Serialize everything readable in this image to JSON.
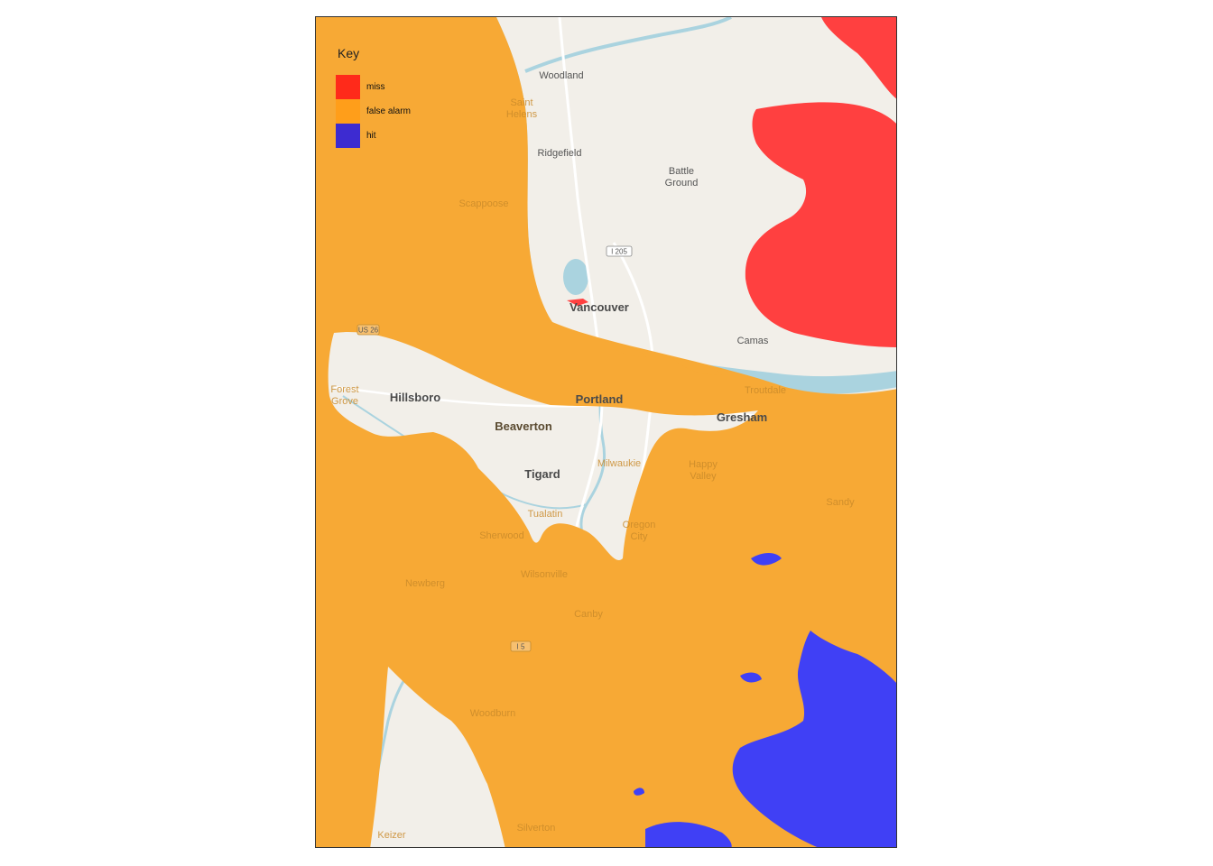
{
  "legend": {
    "title": "Key",
    "items": [
      {
        "label": "miss",
        "color": "#ff2a1a"
      },
      {
        "label": "false alarm",
        "color": "#ff9e1a"
      },
      {
        "label": "hit",
        "color": "#3d2bd1"
      }
    ]
  },
  "colors": {
    "land": "#f2efe9",
    "water": "#aad3df",
    "miss_overlay": "#ff4040",
    "false_alarm_overlay": "#f7a935",
    "hit_overlay": "#4040f5",
    "frame": "#333333"
  },
  "places": {
    "woodland": "Woodland",
    "saint_helens_1": "Saint",
    "saint_helens_2": "Helens",
    "ridgefield": "Ridgefield",
    "battle_ground_1": "Battle",
    "battle_ground_2": "Ground",
    "scappoose": "Scappoose",
    "vancouver": "Vancouver",
    "camas": "Camas",
    "forest_grove_1": "Forest",
    "forest_grove_2": "Grove",
    "hillsboro": "Hillsboro",
    "portland": "Portland",
    "troutdale": "Troutdale",
    "gresham": "Gresham",
    "beaverton": "Beaverton",
    "tigard": "Tigard",
    "milwaukie": "Milwaukie",
    "happy_valley_1": "Happy",
    "happy_valley_2": "Valley",
    "sandy": "Sandy",
    "tualatin": "Tualatin",
    "oregon_city_1": "Oregon",
    "oregon_city_2": "City",
    "sherwood": "Sherwood",
    "wilsonville": "Wilsonville",
    "newberg": "Newberg",
    "canby": "Canby",
    "woodburn": "Woodburn",
    "silverton": "Silverton",
    "keizer": "Keizer"
  },
  "road_shields": {
    "i205": "I 205",
    "i5": "I 5",
    "us26": "US 26"
  }
}
